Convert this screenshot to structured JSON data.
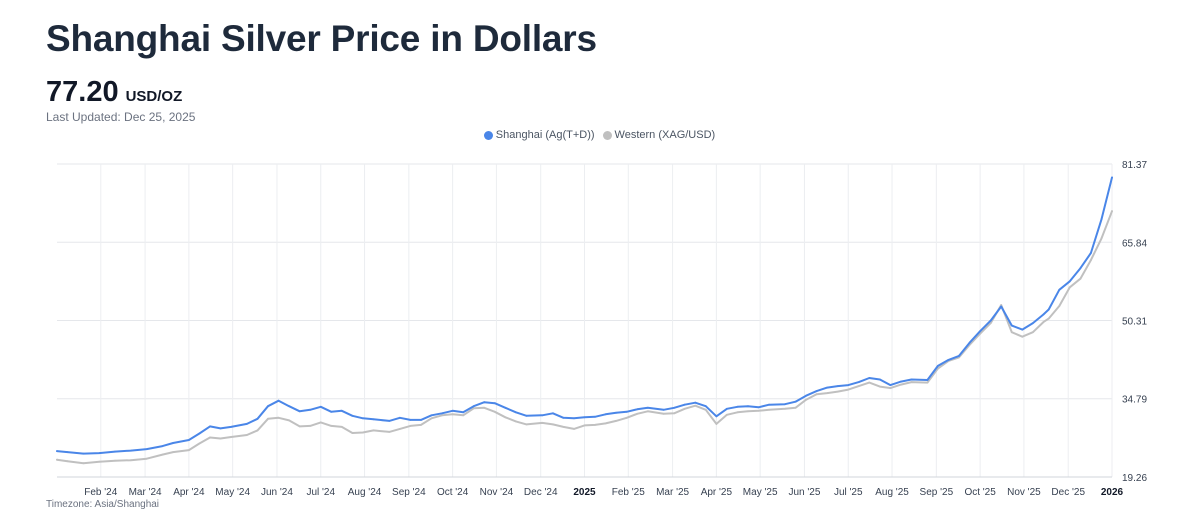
{
  "header": {
    "title": "Shanghai Silver Price in Dollars",
    "price": "77.20",
    "unit": "USD/OZ",
    "last_updated": "Last Updated: Dec 25, 2025",
    "timezone": "Timezone: Asia/Shanghai"
  },
  "colors": {
    "shanghai": "#4a86e8",
    "western": "#c0c0c0"
  },
  "chart_data": {
    "type": "line",
    "title": "Shanghai Silver Price in Dollars",
    "xlabel": "",
    "ylabel": "USD/OZ",
    "ylim": [
      19.26,
      81.37
    ],
    "y_ticks": [
      "81.37",
      "65.84",
      "50.31",
      "34.79",
      "19.26"
    ],
    "y_axis_position": "right",
    "x_range": [
      2024.0,
      2026.0
    ],
    "x_ticks": [
      {
        "x": 2024.083,
        "label": "Feb '24"
      },
      {
        "x": 2024.167,
        "label": "Mar '24"
      },
      {
        "x": 2024.25,
        "label": "Apr '24"
      },
      {
        "x": 2024.333,
        "label": "May '24"
      },
      {
        "x": 2024.417,
        "label": "Jun '24"
      },
      {
        "x": 2024.5,
        "label": "Jul '24"
      },
      {
        "x": 2024.583,
        "label": "Aug '24"
      },
      {
        "x": 2024.667,
        "label": "Sep '24"
      },
      {
        "x": 2024.75,
        "label": "Oct '24"
      },
      {
        "x": 2024.833,
        "label": "Nov '24"
      },
      {
        "x": 2024.917,
        "label": "Dec '24"
      },
      {
        "x": 2025.0,
        "label": "2025",
        "bold": true
      },
      {
        "x": 2025.083,
        "label": "Feb '25"
      },
      {
        "x": 2025.167,
        "label": "Mar '25"
      },
      {
        "x": 2025.25,
        "label": "Apr '25"
      },
      {
        "x": 2025.333,
        "label": "May '25"
      },
      {
        "x": 2025.417,
        "label": "Jun '25"
      },
      {
        "x": 2025.5,
        "label": "Jul '25"
      },
      {
        "x": 2025.583,
        "label": "Aug '25"
      },
      {
        "x": 2025.667,
        "label": "Sep '25"
      },
      {
        "x": 2025.75,
        "label": "Oct '25"
      },
      {
        "x": 2025.833,
        "label": "Nov '25"
      },
      {
        "x": 2025.917,
        "label": "Dec '25"
      },
      {
        "x": 2026.0,
        "label": "2026",
        "bold": true
      }
    ],
    "legend_position": "top-center",
    "series": [
      {
        "name": "Shanghai (Ag(T+D))",
        "color": "#4a86e8",
        "points": [
          [
            2024.0,
            24.4
          ],
          [
            2024.02,
            24.2
          ],
          [
            2024.05,
            23.9
          ],
          [
            2024.08,
            24.0
          ],
          [
            2024.11,
            24.3
          ],
          [
            2024.14,
            24.5
          ],
          [
            2024.17,
            24.8
          ],
          [
            2024.2,
            25.4
          ],
          [
            2024.22,
            26.0
          ],
          [
            2024.25,
            26.6
          ],
          [
            2024.27,
            27.9
          ],
          [
            2024.29,
            29.3
          ],
          [
            2024.31,
            28.9
          ],
          [
            2024.33,
            29.2
          ],
          [
            2024.36,
            29.8
          ],
          [
            2024.38,
            30.8
          ],
          [
            2024.4,
            33.3
          ],
          [
            2024.42,
            34.4
          ],
          [
            2024.44,
            33.3
          ],
          [
            2024.46,
            32.3
          ],
          [
            2024.48,
            32.6
          ],
          [
            2024.5,
            33.2
          ],
          [
            2024.52,
            32.2
          ],
          [
            2024.54,
            32.4
          ],
          [
            2024.56,
            31.4
          ],
          [
            2024.58,
            30.9
          ],
          [
            2024.6,
            30.7
          ],
          [
            2024.63,
            30.4
          ],
          [
            2024.65,
            31.0
          ],
          [
            2024.67,
            30.6
          ],
          [
            2024.69,
            30.6
          ],
          [
            2024.71,
            31.5
          ],
          [
            2024.73,
            31.9
          ],
          [
            2024.75,
            32.4
          ],
          [
            2024.77,
            32.1
          ],
          [
            2024.79,
            33.3
          ],
          [
            2024.81,
            34.1
          ],
          [
            2024.83,
            33.9
          ],
          [
            2024.85,
            33.0
          ],
          [
            2024.87,
            32.1
          ],
          [
            2024.89,
            31.4
          ],
          [
            2024.92,
            31.5
          ],
          [
            2024.94,
            31.9
          ],
          [
            2024.96,
            31.0
          ],
          [
            2024.98,
            30.9
          ],
          [
            2025.0,
            31.1
          ],
          [
            2025.02,
            31.2
          ],
          [
            2025.04,
            31.7
          ],
          [
            2025.06,
            32.0
          ],
          [
            2025.08,
            32.2
          ],
          [
            2025.1,
            32.7
          ],
          [
            2025.12,
            33.0
          ],
          [
            2025.15,
            32.6
          ],
          [
            2025.17,
            33.0
          ],
          [
            2025.19,
            33.6
          ],
          [
            2025.21,
            34.0
          ],
          [
            2025.23,
            33.3
          ],
          [
            2025.25,
            31.3
          ],
          [
            2025.27,
            32.8
          ],
          [
            2025.29,
            33.2
          ],
          [
            2025.31,
            33.3
          ],
          [
            2025.33,
            33.1
          ],
          [
            2025.35,
            33.6
          ],
          [
            2025.38,
            33.7
          ],
          [
            2025.4,
            34.2
          ],
          [
            2025.42,
            35.4
          ],
          [
            2025.44,
            36.3
          ],
          [
            2025.46,
            37.0
          ],
          [
            2025.48,
            37.3
          ],
          [
            2025.5,
            37.5
          ],
          [
            2025.52,
            38.1
          ],
          [
            2025.54,
            38.9
          ],
          [
            2025.56,
            38.6
          ],
          [
            2025.58,
            37.5
          ],
          [
            2025.6,
            38.2
          ],
          [
            2025.62,
            38.6
          ],
          [
            2025.65,
            38.5
          ],
          [
            2025.67,
            41.3
          ],
          [
            2025.69,
            42.5
          ],
          [
            2025.71,
            43.3
          ],
          [
            2025.73,
            45.9
          ],
          [
            2025.75,
            48.2
          ],
          [
            2025.77,
            50.3
          ],
          [
            2025.79,
            53.1
          ],
          [
            2025.81,
            49.3
          ],
          [
            2025.83,
            48.5
          ],
          [
            2025.85,
            49.8
          ],
          [
            2025.87,
            51.5
          ],
          [
            2025.88,
            52.5
          ],
          [
            2025.9,
            56.4
          ],
          [
            2025.92,
            58.1
          ],
          [
            2025.94,
            60.7
          ],
          [
            2025.96,
            63.7
          ],
          [
            2025.98,
            70.4
          ],
          [
            2026.0,
            78.7
          ]
        ]
      },
      {
        "name": "Western (XAG/USD)",
        "color": "#c0c0c0",
        "points": [
          [
            2024.0,
            22.7
          ],
          [
            2024.02,
            22.4
          ],
          [
            2024.05,
            22.0
          ],
          [
            2024.08,
            22.3
          ],
          [
            2024.11,
            22.5
          ],
          [
            2024.14,
            22.6
          ],
          [
            2024.17,
            22.9
          ],
          [
            2024.2,
            23.7
          ],
          [
            2024.22,
            24.2
          ],
          [
            2024.25,
            24.6
          ],
          [
            2024.27,
            25.9
          ],
          [
            2024.29,
            27.1
          ],
          [
            2024.31,
            26.9
          ],
          [
            2024.33,
            27.2
          ],
          [
            2024.36,
            27.6
          ],
          [
            2024.38,
            28.5
          ],
          [
            2024.4,
            30.8
          ],
          [
            2024.42,
            31.0
          ],
          [
            2024.44,
            30.5
          ],
          [
            2024.46,
            29.3
          ],
          [
            2024.48,
            29.4
          ],
          [
            2024.5,
            30.1
          ],
          [
            2024.52,
            29.4
          ],
          [
            2024.54,
            29.2
          ],
          [
            2024.56,
            28.0
          ],
          [
            2024.58,
            28.1
          ],
          [
            2024.6,
            28.5
          ],
          [
            2024.63,
            28.2
          ],
          [
            2024.65,
            28.8
          ],
          [
            2024.67,
            29.4
          ],
          [
            2024.69,
            29.6
          ],
          [
            2024.71,
            30.9
          ],
          [
            2024.73,
            31.5
          ],
          [
            2024.75,
            31.7
          ],
          [
            2024.77,
            31.5
          ],
          [
            2024.79,
            32.9
          ],
          [
            2024.81,
            33.0
          ],
          [
            2024.83,
            32.2
          ],
          [
            2024.85,
            31.1
          ],
          [
            2024.87,
            30.3
          ],
          [
            2024.89,
            29.7
          ],
          [
            2024.92,
            30.0
          ],
          [
            2024.94,
            29.7
          ],
          [
            2024.96,
            29.2
          ],
          [
            2024.98,
            28.8
          ],
          [
            2025.0,
            29.5
          ],
          [
            2025.02,
            29.6
          ],
          [
            2025.04,
            29.9
          ],
          [
            2025.06,
            30.4
          ],
          [
            2025.08,
            31.0
          ],
          [
            2025.1,
            31.8
          ],
          [
            2025.12,
            32.3
          ],
          [
            2025.15,
            31.8
          ],
          [
            2025.17,
            31.9
          ],
          [
            2025.19,
            32.8
          ],
          [
            2025.21,
            33.4
          ],
          [
            2025.23,
            32.6
          ],
          [
            2025.25,
            29.8
          ],
          [
            2025.27,
            31.6
          ],
          [
            2025.29,
            32.1
          ],
          [
            2025.31,
            32.3
          ],
          [
            2025.33,
            32.4
          ],
          [
            2025.35,
            32.6
          ],
          [
            2025.38,
            32.8
          ],
          [
            2025.4,
            33.0
          ],
          [
            2025.42,
            34.6
          ],
          [
            2025.44,
            35.7
          ],
          [
            2025.46,
            35.9
          ],
          [
            2025.48,
            36.2
          ],
          [
            2025.5,
            36.6
          ],
          [
            2025.52,
            37.3
          ],
          [
            2025.54,
            38.0
          ],
          [
            2025.56,
            37.2
          ],
          [
            2025.58,
            36.9
          ],
          [
            2025.6,
            37.6
          ],
          [
            2025.62,
            38.1
          ],
          [
            2025.65,
            38.0
          ],
          [
            2025.67,
            40.8
          ],
          [
            2025.69,
            42.3
          ],
          [
            2025.71,
            43.0
          ],
          [
            2025.73,
            45.5
          ],
          [
            2025.75,
            47.7
          ],
          [
            2025.77,
            49.8
          ],
          [
            2025.79,
            53.4
          ],
          [
            2025.81,
            48.0
          ],
          [
            2025.83,
            47.1
          ],
          [
            2025.85,
            48.0
          ],
          [
            2025.87,
            50.0
          ],
          [
            2025.88,
            50.7
          ],
          [
            2025.9,
            53.2
          ],
          [
            2025.92,
            56.9
          ],
          [
            2025.94,
            58.6
          ],
          [
            2025.96,
            62.3
          ],
          [
            2025.98,
            66.6
          ],
          [
            2026.0,
            72.0
          ]
        ]
      }
    ]
  }
}
